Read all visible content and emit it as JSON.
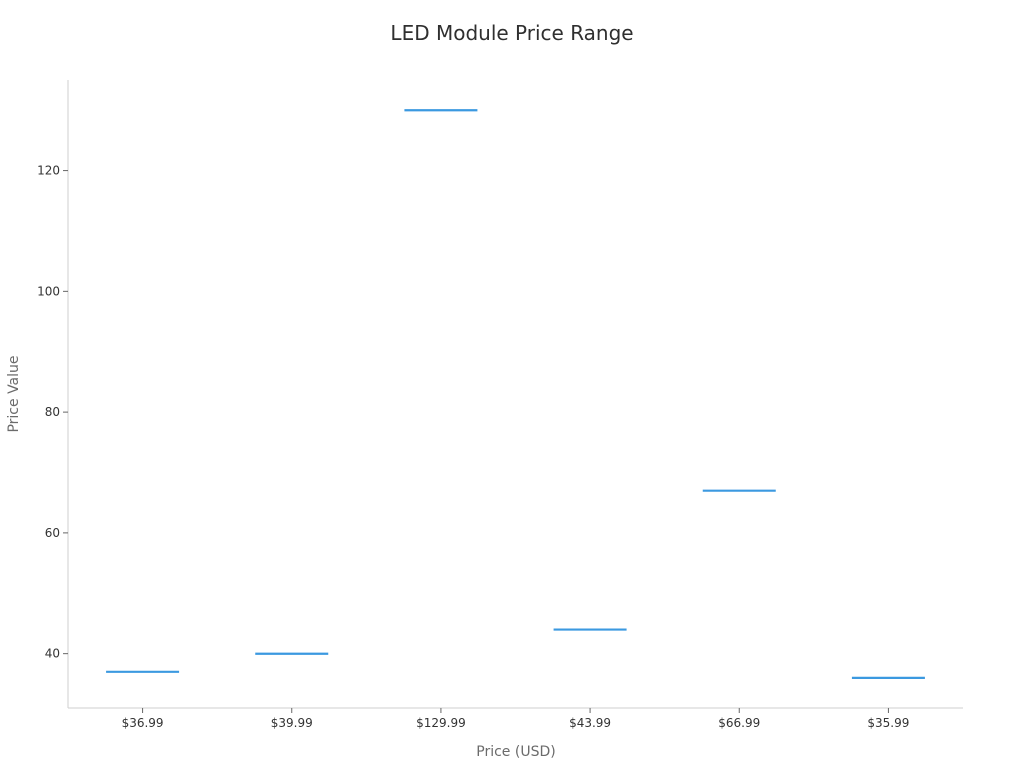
{
  "chart_data": {
    "type": "scatter",
    "title": "LED Module Price Range",
    "xlabel": "Price (USD)",
    "ylabel": "Price Value",
    "categories": [
      "$36.99",
      "$39.99",
      "$129.99",
      "$43.99",
      "$66.99",
      "$35.99"
    ],
    "values": [
      36.99,
      39.99,
      129.99,
      43.99,
      66.99,
      35.99
    ],
    "ylim": [
      31,
      135
    ],
    "yticks": [
      40,
      60,
      80,
      100,
      120
    ],
    "marker": "horizontal-line",
    "grid": false,
    "color": "#3b99e0"
  }
}
